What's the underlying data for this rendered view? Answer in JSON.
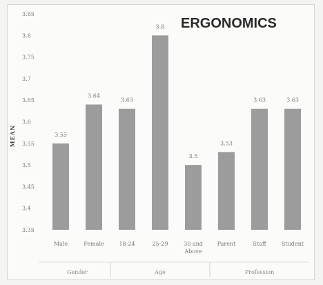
{
  "chart_data": {
    "type": "bar",
    "title": "ERGONOMICS",
    "ylabel": "MEAN",
    "xlabel": "",
    "ylim": [
      3.35,
      3.85
    ],
    "yticks": [
      "3.35",
      "3.4",
      "3.45",
      "3.5",
      "3.55",
      "3.6",
      "3.65",
      "3.7",
      "3.75",
      "3.8",
      "3.85"
    ],
    "categories": [
      "Male",
      "Female",
      "18-24",
      "25-29",
      "30 and Above",
      "Parent",
      "Staff",
      "Student"
    ],
    "values": [
      3.55,
      3.64,
      3.63,
      3.8,
      3.5,
      3.53,
      3.63,
      3.63
    ],
    "data_labels": [
      "3.55",
      "3.64",
      "3.63",
      "3.8",
      "3.5",
      "3.53",
      "3.63",
      "3.63"
    ],
    "groups": [
      {
        "label": "Gender",
        "categories": [
          "Male",
          "Female"
        ]
      },
      {
        "label": "Age",
        "categories": [
          "18-24",
          "25-29",
          "30 and Above"
        ]
      },
      {
        "label": "Profession",
        "categories": [
          "Parent",
          "Staff",
          "Student"
        ]
      }
    ],
    "bar_color": "#9c9c9c",
    "grid": false,
    "legend": "none"
  }
}
